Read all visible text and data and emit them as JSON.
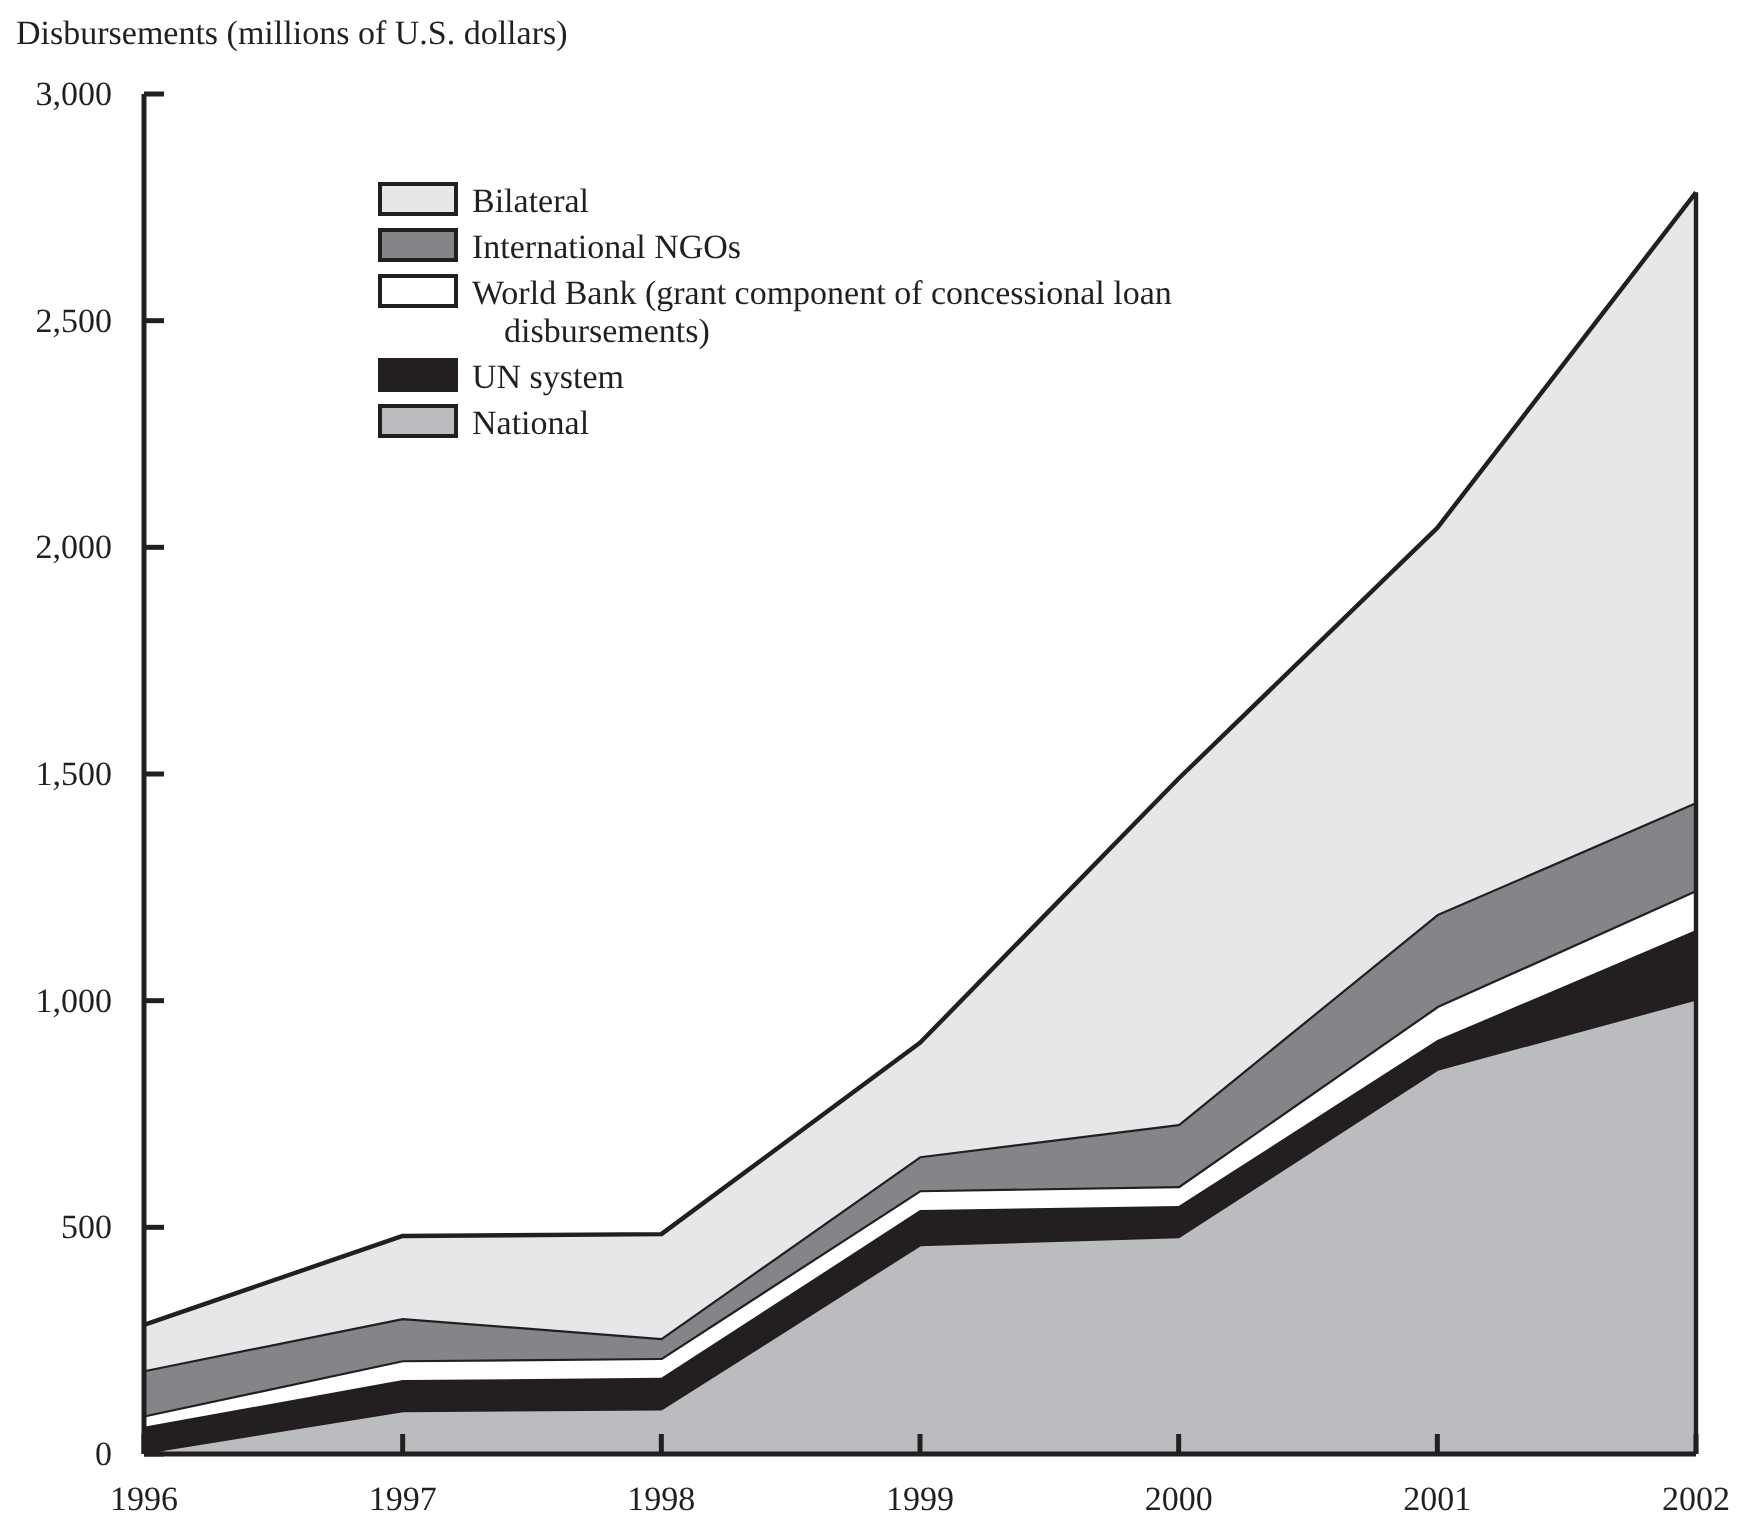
{
  "chart_data": {
    "type": "area",
    "stacked": true,
    "ylabel": "Disbursements (millions of U.S. dollars)",
    "x": [
      1996,
      1997,
      1998,
      1999,
      2000,
      2001,
      2002
    ],
    "xlim": [
      1996,
      2002
    ],
    "xticks": [
      1996,
      1997,
      1998,
      1999,
      2000,
      2001,
      2002
    ],
    "ylim": [
      0,
      3000
    ],
    "yticks": [
      0,
      {
        "value": 500,
        "label": "500"
      },
      {
        "value": 1000,
        "label": "1,000"
      },
      {
        "value": 1500,
        "label": "1,500"
      },
      {
        "value": 2000,
        "label": "2,000"
      },
      {
        "value": 2500,
        "label": "2,500"
      },
      {
        "value": 3000,
        "label": "3,000"
      }
    ],
    "legend": "top left",
    "grid": false,
    "series": [
      {
        "name": "National",
        "color": "#bbbcc0",
        "values": [
          5,
          97,
          101,
          463,
          481,
          850,
          1005
        ]
      },
      {
        "name": "UN system",
        "color": "#231f20",
        "values": [
          55,
          66,
          67,
          75,
          66,
          63,
          151
        ]
      },
      {
        "name": "World Bank (grant component of concessional loan disbursements)",
        "color": "#ffffff",
        "values": [
          25,
          44,
          44,
          44,
          44,
          75,
          88
        ]
      },
      {
        "name": "International NGOs",
        "color": "#838588",
        "values": [
          100,
          93,
          44,
          75,
          137,
          203,
          194
        ]
      },
      {
        "name": "Bilateral",
        "color": "#e6e7e9",
        "values": [
          100,
          181,
          229,
          250,
          762,
          852,
          1345
        ]
      }
    ]
  }
}
